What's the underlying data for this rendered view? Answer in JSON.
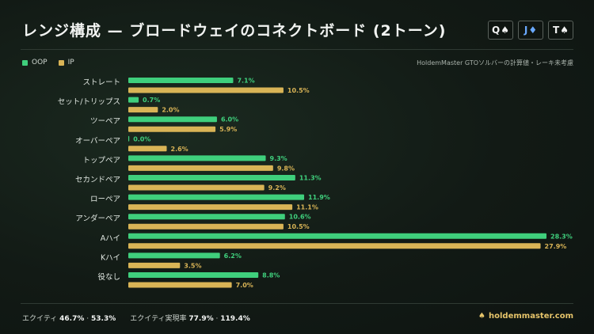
{
  "header": {
    "title": "レンジ構成 — ブロードウェイのコネクトボード (2トーン)",
    "board": [
      {
        "rank": "Q",
        "suit": "♠",
        "suit_name": "spade-icon",
        "color": "#f2f2f2"
      },
      {
        "rank": "J",
        "suit": "♦",
        "suit_name": "diamond-icon",
        "color": "#6aa9ff"
      },
      {
        "rank": "T",
        "suit": "♠",
        "suit_name": "spade-icon",
        "color": "#f2f2f2"
      }
    ]
  },
  "legend": {
    "oop": "OOP",
    "ip": "IP",
    "oop_color": "#3fcf7c",
    "ip_color": "#d9b456"
  },
  "note": "HoldemMaster GTOソルバーの計算値・レーキ未考慮",
  "chart_data": {
    "type": "bar",
    "orientation": "horizontal",
    "categories": [
      "ストレート",
      "セット/トリップス",
      "ツーペア",
      "オーバーペア",
      "トップペア",
      "セカンドペア",
      "ローペア",
      "アンダーペア",
      "Aハイ",
      "Kハイ",
      "役なし"
    ],
    "series": [
      {
        "name": "OOP",
        "values": [
          7.1,
          0.7,
          6.0,
          0.0,
          9.3,
          11.3,
          11.9,
          10.6,
          28.3,
          6.2,
          8.8
        ]
      },
      {
        "name": "IP",
        "values": [
          10.5,
          2.0,
          5.9,
          2.6,
          9.8,
          9.2,
          11.1,
          10.5,
          27.9,
          3.5,
          7.0
        ]
      }
    ],
    "unit": "%",
    "xlim": [
      0,
      28.3
    ],
    "grid": false,
    "legend_position": "top-left"
  },
  "footer": {
    "equity_label": "エクイティ",
    "equity_oop": "46.7%",
    "equity_ip": "53.3%",
    "realization_label": "エクイティ実現率",
    "realization_oop": "77.9%",
    "realization_ip": "119.4%",
    "separator": "·",
    "brand": "holdemmaster.com",
    "brand_icon": "spade-icon"
  }
}
